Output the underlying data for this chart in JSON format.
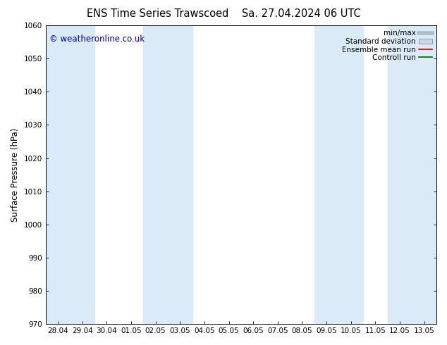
{
  "title_left": "ENS Time Series Trawscoed",
  "title_right": "Sa. 27.04.2024 06 UTC",
  "ylabel": "Surface Pressure (hPa)",
  "ylim": [
    970,
    1060
  ],
  "yticks": [
    970,
    980,
    990,
    1000,
    1010,
    1020,
    1030,
    1040,
    1050,
    1060
  ],
  "xlabels": [
    "28.04",
    "29.04",
    "30.04",
    "01.05",
    "02.05",
    "03.05",
    "04.05",
    "05.05",
    "06.05",
    "07.05",
    "08.05",
    "09.05",
    "10.05",
    "11.05",
    "12.05",
    "13.05"
  ],
  "x_values": [
    0,
    1,
    2,
    3,
    4,
    5,
    6,
    7,
    8,
    9,
    10,
    11,
    12,
    13,
    14,
    15
  ],
  "shaded_columns": [
    0,
    1,
    4,
    5,
    11,
    12,
    14,
    15
  ],
  "shade_color": "#daeaf7",
  "background_color": "#ffffff",
  "plot_bg_color": "#ffffff",
  "copyright_text": "© weatheronline.co.uk",
  "copyright_color": "#0000aa",
  "legend_items": [
    {
      "label": "min/max",
      "color": "#a8bece",
      "style": "line",
      "lw": 4
    },
    {
      "label": "Standard deviation",
      "color": "#c8d8e8",
      "style": "box"
    },
    {
      "label": "Ensemble mean run",
      "color": "#cc0000",
      "style": "line",
      "lw": 1.2
    },
    {
      "label": "Controll run",
      "color": "#006400",
      "style": "line",
      "lw": 1.2
    }
  ],
  "title_fontsize": 10.5,
  "ylabel_fontsize": 8.5,
  "tick_fontsize": 7.5,
  "legend_fontsize": 7.5,
  "copyright_fontsize": 8.5
}
